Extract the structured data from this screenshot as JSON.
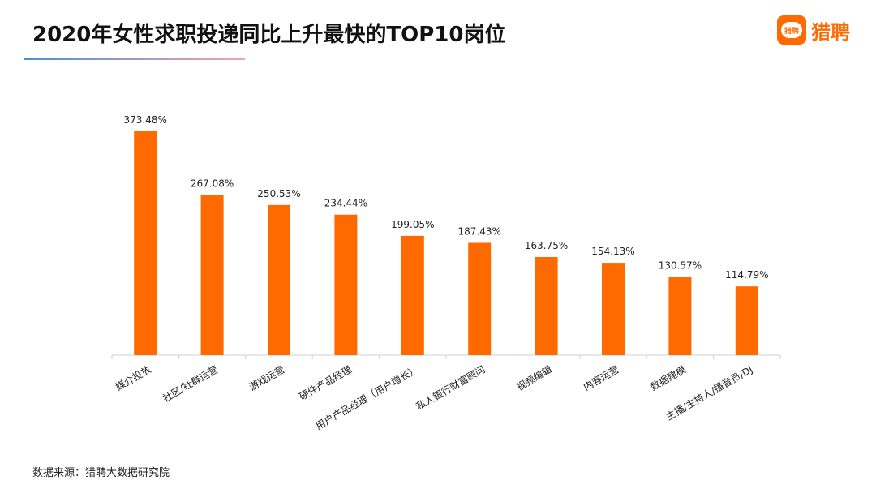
{
  "header": {
    "title": "2020年女性求职投递同比上升最快的TOP10岗位"
  },
  "logo": {
    "mark_text": "猎聘",
    "text": "猎聘"
  },
  "footer": {
    "source": "数据来源：猎聘大数据研究院"
  },
  "colors": {
    "bar": "#ff6a00",
    "accent": "#ff6a00"
  },
  "chart_data": {
    "type": "bar",
    "title": "2020年女性求职投递同比上升最快的TOP10岗位",
    "xlabel": "",
    "ylabel": "",
    "ylim": [
      0,
      400
    ],
    "grid": false,
    "legend": "none",
    "categories": [
      "媒介投放",
      "社区/社群运营",
      "游戏运营",
      "硬件产品经理",
      "用户产品经理（用户增长）",
      "私人银行财富顾问",
      "视频编辑",
      "内容运营",
      "数据建模",
      "主播/主持人/播音员/DJ"
    ],
    "values": [
      373.48,
      267.08,
      250.53,
      234.44,
      199.05,
      187.43,
      163.75,
      154.13,
      130.57,
      114.79
    ],
    "labels": [
      "373.48%",
      "267.08%",
      "250.53%",
      "234.44%",
      "199.05%",
      "187.43%",
      "163.75%",
      "154.13%",
      "130.57%",
      "114.79%"
    ]
  }
}
